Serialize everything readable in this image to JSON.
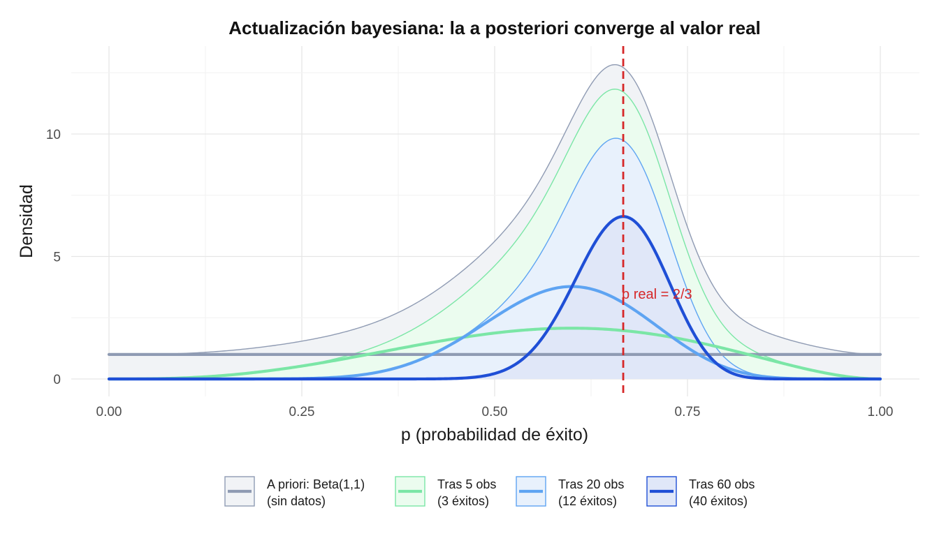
{
  "chart_data": {
    "type": "area",
    "title": "Actualización bayesiana: la a posteriori converge al valor real",
    "xlabel": "p (probabilidad de éxito)",
    "ylabel": "Densidad",
    "xlim": [
      0,
      1
    ],
    "ylim": [
      0,
      12.85
    ],
    "x_ticks": [
      0,
      0.25,
      0.5,
      0.75,
      1
    ],
    "x_tick_labels": [
      "0.00",
      "0.25",
      "0.50",
      "0.75",
      "1.00"
    ],
    "y_ticks": [
      0,
      5,
      10
    ],
    "y_tick_labels": [
      "0",
      "5",
      "10"
    ],
    "grid": true,
    "legend_position": "bottom",
    "stacked": true,
    "series": [
      {
        "label_line1": "A priori: Beta(1,1)",
        "label_line2": "(sin datos)",
        "distribution": "Beta(1,1)",
        "alpha": 1,
        "beta": 1,
        "line_color": "#8f9bb3",
        "fill_color": "#f1f3f6",
        "edge_color": "#8f9bb3"
      },
      {
        "label_line1": "Tras 5 obs",
        "label_line2": "(3 éxitos)",
        "distribution": "Beta(4,3)",
        "alpha": 4,
        "beta": 3,
        "line_color": "#7be6a6",
        "fill_color": "#ebfcef",
        "edge_color": "#7be6a6"
      },
      {
        "label_line1": "Tras 20 obs",
        "label_line2": "(12 éxitos)",
        "distribution": "Beta(13,9)",
        "alpha": 13,
        "beta": 9,
        "line_color": "#5ea4f2",
        "fill_color": "#e8f1fc",
        "edge_color": "#5ea4f2"
      },
      {
        "label_line1": "Tras 60 obs",
        "label_line2": "(40 éxitos)",
        "distribution": "Beta(41,21)",
        "alpha": 41,
        "beta": 21,
        "line_color": "#1f4fd6",
        "fill_color": "#e0e7f8",
        "edge_color": "#1f4fd6"
      }
    ],
    "reference_line": {
      "x": 0.6667,
      "label": "p real = 2/3",
      "color": "#d62728",
      "style": "dashed"
    }
  }
}
